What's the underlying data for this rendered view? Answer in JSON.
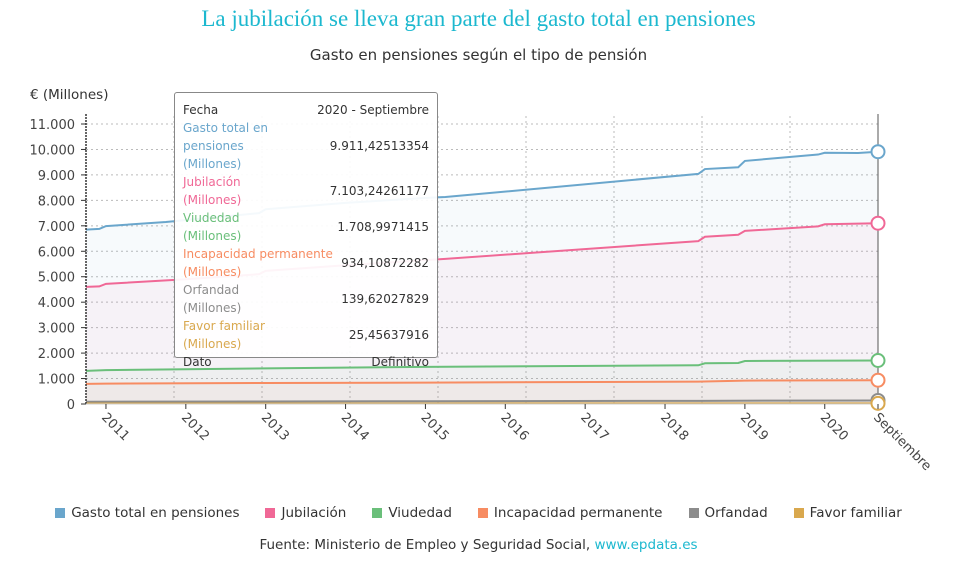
{
  "chart_data": {
    "type": "area",
    "title": "La jubilación se lleva gran parte del gasto total en pensiones",
    "subtitle": "Gasto en pensiones según el tipo de pensión",
    "ylabel": "€ (Millones)",
    "ylim": [
      0,
      11000
    ],
    "yticks": [
      "0",
      "1.000",
      "2.000",
      "3.000",
      "4.000",
      "5.000",
      "6.000",
      "7.000",
      "8.000",
      "9.000",
      "10.000",
      "11.000"
    ],
    "xrange": [
      "2010-10",
      "2020-09"
    ],
    "xticks": [
      {
        "date": "2011-01",
        "label": "2011"
      },
      {
        "date": "2012-01",
        "label": "2012"
      },
      {
        "date": "2013-01",
        "label": "2013"
      },
      {
        "date": "2014-01",
        "label": "2014"
      },
      {
        "date": "2015-01",
        "label": "2015"
      },
      {
        "date": "2016-01",
        "label": "2016"
      },
      {
        "date": "2017-01",
        "label": "2017"
      },
      {
        "date": "2018-01",
        "label": "2018"
      },
      {
        "date": "2019-01",
        "label": "2019"
      },
      {
        "date": "2020-01",
        "label": "2020"
      },
      {
        "date": "2020-09",
        "label": "Septiembre"
      }
    ],
    "grid": true,
    "legend_position": "bottom",
    "series": [
      {
        "name": "Gasto total en pensiones",
        "color": "#6aa6cc",
        "points": [
          [
            "2010-10",
            6850
          ],
          [
            "2010-12",
            6880
          ],
          [
            "2011-01",
            6990
          ],
          [
            "2011-10",
            7150
          ],
          [
            "2012-12",
            7500
          ],
          [
            "2013-01",
            7650
          ],
          [
            "2014-01",
            7900
          ],
          [
            "2015-01",
            8100
          ],
          [
            "2015-04",
            8130
          ],
          [
            "2018-06",
            9040
          ],
          [
            "2018-07",
            9230
          ],
          [
            "2018-12",
            9300
          ],
          [
            "2019-01",
            9550
          ],
          [
            "2019-12",
            9800
          ],
          [
            "2020-01",
            9870
          ],
          [
            "2020-06",
            9860
          ],
          [
            "2020-09",
            9911.43
          ]
        ]
      },
      {
        "name": "Jubilación",
        "color": "#f06896",
        "points": [
          [
            "2010-10",
            4600
          ],
          [
            "2010-12",
            4620
          ],
          [
            "2011-01",
            4720
          ],
          [
            "2012-01",
            4900
          ],
          [
            "2012-12",
            5100
          ],
          [
            "2013-01",
            5230
          ],
          [
            "2014-01",
            5450
          ],
          [
            "2015-01",
            5650
          ],
          [
            "2015-04",
            5700
          ],
          [
            "2018-06",
            6400
          ],
          [
            "2018-07",
            6570
          ],
          [
            "2018-12",
            6650
          ],
          [
            "2019-01",
            6800
          ],
          [
            "2019-12",
            6980
          ],
          [
            "2020-01",
            7060
          ],
          [
            "2020-09",
            7103.24
          ]
        ]
      },
      {
        "name": "Viudedad",
        "color": "#6abf7a",
        "points": [
          [
            "2010-10",
            1300
          ],
          [
            "2011-01",
            1330
          ],
          [
            "2013-01",
            1400
          ],
          [
            "2015-01",
            1460
          ],
          [
            "2018-06",
            1520
          ],
          [
            "2018-07",
            1600
          ],
          [
            "2018-12",
            1610
          ],
          [
            "2019-01",
            1690
          ],
          [
            "2020-09",
            1709.0
          ]
        ]
      },
      {
        "name": "Incapacidad permanente",
        "color": "#f78c62",
        "points": [
          [
            "2010-10",
            790
          ],
          [
            "2011-01",
            800
          ],
          [
            "2013-01",
            825
          ],
          [
            "2015-01",
            840
          ],
          [
            "2018-06",
            880
          ],
          [
            "2019-01",
            920
          ],
          [
            "2020-09",
            934.11
          ]
        ]
      },
      {
        "name": "Orfandad",
        "color": "#8c8c8c",
        "points": [
          [
            "2010-10",
            90
          ],
          [
            "2015-01",
            110
          ],
          [
            "2018-06",
            125
          ],
          [
            "2020-09",
            139.62
          ]
        ]
      },
      {
        "name": "Favor familiar",
        "color": "#d9a84e",
        "points": [
          [
            "2010-10",
            20
          ],
          [
            "2015-01",
            22
          ],
          [
            "2020-09",
            25.46
          ]
        ]
      }
    ]
  },
  "tooltip": {
    "rows": [
      {
        "label": "Fecha",
        "value": "2020 - Septiembre",
        "color": "#333333"
      },
      {
        "label": "Gasto total en pensiones",
        "unit": "(Millones)",
        "value": "9.911,42513354",
        "color": "#6aa6cc"
      },
      {
        "label": "Jubilación",
        "unit": "(Millones)",
        "value": "7.103,24261177",
        "color": "#f06896"
      },
      {
        "label": "Viudedad",
        "unit": "(Millones)",
        "value": "1.708,9971415",
        "color": "#6abf7a"
      },
      {
        "label": "Incapacidad permanente",
        "unit": "(Millones)",
        "value": "934,10872282",
        "color": "#f78c62"
      },
      {
        "label": "Orfandad",
        "unit": "(Millones)",
        "value": "139,62027829",
        "color": "#8c8c8c"
      },
      {
        "label": "Favor familiar",
        "unit": "(Millones)",
        "value": "25,45637916",
        "color": "#d9a84e"
      },
      {
        "label": "Dato",
        "value": "Definitivo",
        "color": "#333333"
      }
    ]
  },
  "footer": {
    "source": "Fuente: Ministerio de Empleo y Seguridad Social, ",
    "link": "www.epdata.es"
  }
}
